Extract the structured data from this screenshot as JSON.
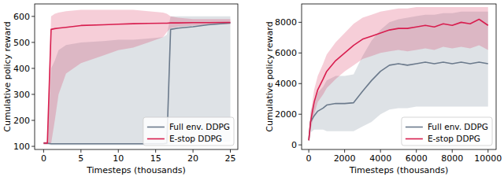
{
  "chart_data": [
    {
      "type": "line",
      "x_label": "Timesteps (thousands)",
      "y_label": "Cumulative policy reward",
      "xlim": [
        -1.2,
        26.0
      ],
      "ylim": [
        88,
        648
      ],
      "xticks": [
        0,
        5,
        10,
        15,
        20,
        25
      ],
      "yticks": [
        100,
        200,
        300,
        400,
        500,
        600
      ],
      "grid": false,
      "legend": "lower right",
      "x": [
        0,
        0.5,
        1,
        1.5,
        2,
        3,
        5,
        8,
        10,
        12,
        14,
        16,
        16.5,
        17,
        18,
        20,
        22,
        25
      ],
      "series": [
        {
          "name": "Full env. DDPG",
          "color": "#6b7a8c",
          "values": [
            112,
            112,
            110,
            110,
            110,
            110,
            110,
            110,
            110,
            110,
            110,
            110,
            112,
            550,
            555,
            560,
            568,
            575
          ],
          "lower": [
            108,
            108,
            105,
            105,
            105,
            105,
            105,
            105,
            105,
            105,
            105,
            105,
            105,
            110,
            112,
            115,
            115,
            118
          ],
          "upper": [
            115,
            115,
            400,
            430,
            470,
            490,
            500,
            505,
            510,
            510,
            515,
            520,
            530,
            600,
            600,
            600,
            600,
            600
          ]
        },
        {
          "name": "E-stop DDPG",
          "color": "#d81e4f",
          "values": [
            112,
            112,
            550,
            553,
            555,
            558,
            565,
            568,
            570,
            572,
            573,
            574,
            574,
            575,
            575,
            576,
            576,
            577
          ],
          "lower": [
            108,
            108,
            110,
            200,
            300,
            380,
            420,
            450,
            470,
            480,
            500,
            520,
            540,
            555,
            560,
            565,
            568,
            570
          ],
          "upper": [
            118,
            118,
            600,
            610,
            615,
            620,
            625,
            625,
            625,
            625,
            620,
            615,
            610,
            600,
            595,
            590,
            590,
            590
          ]
        }
      ]
    },
    {
      "type": "line",
      "x_label": "Timesteps (thousands)",
      "y_label": "Cumulative policy reward",
      "xlim": [
        -400,
        10450
      ],
      "ylim": [
        -300,
        9200
      ],
      "xticks": [
        0,
        2000,
        4000,
        6000,
        8000,
        10000
      ],
      "yticks": [
        0,
        2000,
        4000,
        6000,
        8000
      ],
      "grid": false,
      "legend": "lower right",
      "x": [
        0,
        100,
        300,
        500,
        800,
        1000,
        1500,
        2000,
        2500,
        3000,
        3500,
        4000,
        4500,
        5000,
        5500,
        6000,
        6500,
        7000,
        7500,
        8000,
        8500,
        9000,
        9500,
        10000
      ],
      "series": [
        {
          "name": "Full env. DDPG",
          "color": "#6b7a8c",
          "values": [
            300,
            1500,
            1900,
            2200,
            2400,
            2600,
            2700,
            2700,
            2750,
            3500,
            4200,
            4800,
            5200,
            5300,
            5200,
            5300,
            5400,
            5300,
            5400,
            5300,
            5400,
            5300,
            5400,
            5300
          ],
          "lower": [
            200,
            800,
            1000,
            1000,
            1000,
            900,
            900,
            900,
            900,
            1200,
            1500,
            2000,
            2300,
            2400,
            2400,
            2500,
            2500,
            2500,
            2500,
            2500,
            2500,
            2500,
            2500,
            2500
          ],
          "upper": [
            400,
            2200,
            2800,
            3400,
            3800,
            4200,
            4500,
            4500,
            4600,
            5800,
            6800,
            7500,
            8000,
            8200,
            8300,
            8400,
            8500,
            8500,
            8600,
            8600,
            8700,
            8700,
            8700,
            8700
          ]
        },
        {
          "name": "E-stop DDPG",
          "color": "#d81e4f",
          "values": [
            300,
            1500,
            2800,
            3600,
            4300,
            4800,
            5500,
            6000,
            6500,
            6900,
            7100,
            7300,
            7500,
            7600,
            7600,
            7700,
            7800,
            7700,
            7900,
            7800,
            8000,
            7900,
            8200,
            7800
          ],
          "lower": [
            200,
            1000,
            2000,
            2800,
            3300,
            3700,
            4300,
            4800,
            5200,
            5600,
            5800,
            6000,
            6100,
            6200,
            6100,
            6200,
            6300,
            6200,
            6400,
            6300,
            6400,
            6300,
            6500,
            6200
          ],
          "upper": [
            400,
            2000,
            3600,
            4500,
            5300,
            5900,
            6700,
            7300,
            7900,
            8300,
            8500,
            8700,
            8800,
            8900,
            8900,
            9000,
            9000,
            9000,
            9000,
            9000,
            9000,
            9000,
            9000,
            9000
          ]
        }
      ]
    }
  ]
}
